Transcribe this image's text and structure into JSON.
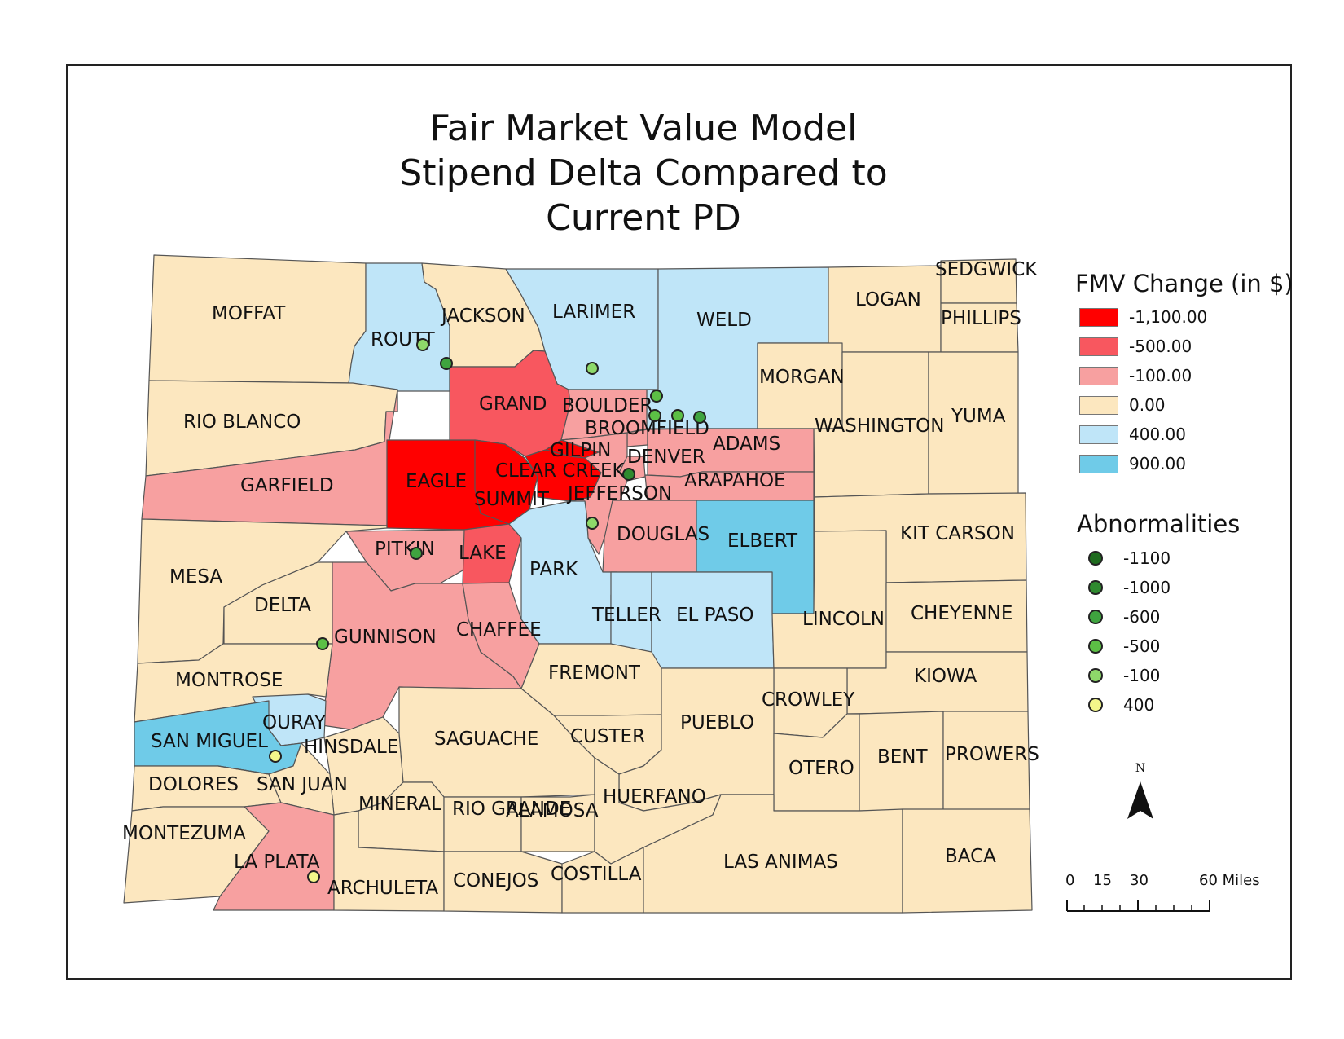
{
  "title": {
    "line1": "Fair Market Value Model",
    "line2": "Stipend Delta Compared to",
    "line3": "Current PD"
  },
  "colors": {
    "-1100": "#ff0000",
    "-500": "#f8575f",
    "-100": "#f7a0a0",
    "0": "#fce7bf",
    "400": "#bfe5f8",
    "900": "#6fcbe8",
    "border": "#555555"
  },
  "legend": {
    "title": "FMV Change (in $)",
    "items": [
      {
        "label": "-1,100.00",
        "color": "#ff0000"
      },
      {
        "label": "-500.00",
        "color": "#f8575f"
      },
      {
        "label": "-100.00",
        "color": "#f7a0a0"
      },
      {
        "label": "0.00",
        "color": "#fce7bf"
      },
      {
        "label": "400.00",
        "color": "#bfe5f8"
      },
      {
        "label": "900.00",
        "color": "#6fcbe8"
      }
    ]
  },
  "abnormalities": {
    "title": "Abnormalities",
    "items": [
      {
        "label": "-1100",
        "color": "#1e6b1e"
      },
      {
        "label": "-1000",
        "color": "#2f8a2f"
      },
      {
        "label": "-600",
        "color": "#3fa43f"
      },
      {
        "label": "-500",
        "color": "#5cbf45"
      },
      {
        "label": "-100",
        "color": "#8ed96a"
      },
      {
        "label": "400",
        "color": "#f3f78a"
      }
    ]
  },
  "north_arrow": {
    "label": "N"
  },
  "scale": {
    "ticks": [
      "0",
      "15",
      "30",
      "60 Miles"
    ]
  },
  "counties": [
    {
      "name": "MOFFAT",
      "class": "0"
    },
    {
      "name": "ROUTT",
      "class": "400"
    },
    {
      "name": "JACKSON",
      "class": "0"
    },
    {
      "name": "LARIMER",
      "class": "400"
    },
    {
      "name": "WELD",
      "class": "400"
    },
    {
      "name": "LOGAN",
      "class": "0"
    },
    {
      "name": "SEDGWICK",
      "class": "0"
    },
    {
      "name": "PHILLIPS",
      "class": "0"
    },
    {
      "name": "RIO BLANCO",
      "class": "0"
    },
    {
      "name": "GRAND",
      "class": "-500"
    },
    {
      "name": "BOULDER",
      "class": "-100"
    },
    {
      "name": "BROOMFIELD",
      "class": "-100"
    },
    {
      "name": "MORGAN",
      "class": "0"
    },
    {
      "name": "WASHINGTON",
      "class": "0"
    },
    {
      "name": "YUMA",
      "class": "0"
    },
    {
      "name": "GARFIELD",
      "class": "-100"
    },
    {
      "name": "EAGLE",
      "class": "-1100"
    },
    {
      "name": "SUMMIT",
      "class": "-1100"
    },
    {
      "name": "GILPIN",
      "class": "-1100"
    },
    {
      "name": "CLEAR CREEK",
      "class": "-1100"
    },
    {
      "name": "DENVER",
      "class": "-100"
    },
    {
      "name": "ADAMS",
      "class": "-100"
    },
    {
      "name": "ARAPAHOE",
      "class": "-100"
    },
    {
      "name": "JEFFERSON",
      "class": "-100"
    },
    {
      "name": "DOUGLAS",
      "class": "-100"
    },
    {
      "name": "ELBERT",
      "class": "900"
    },
    {
      "name": "KIT CARSON",
      "class": "0"
    },
    {
      "name": "MESA",
      "class": "0"
    },
    {
      "name": "PITKIN",
      "class": "-100"
    },
    {
      "name": "LAKE",
      "class": "-500"
    },
    {
      "name": "PARK",
      "class": "400"
    },
    {
      "name": "DELTA",
      "class": "0"
    },
    {
      "name": "TELLER",
      "class": "400"
    },
    {
      "name": "EL PASO",
      "class": "400"
    },
    {
      "name": "LINCOLN",
      "class": "0"
    },
    {
      "name": "CHEYENNE",
      "class": "0"
    },
    {
      "name": "GUNNISON",
      "class": "-100"
    },
    {
      "name": "CHAFFEE",
      "class": "-100"
    },
    {
      "name": "MONTROSE",
      "class": "0"
    },
    {
      "name": "FREMONT",
      "class": "0"
    },
    {
      "name": "KIOWA",
      "class": "0"
    },
    {
      "name": "CROWLEY",
      "class": "0"
    },
    {
      "name": "OURAY",
      "class": "400"
    },
    {
      "name": "SAN MIGUEL",
      "class": "900"
    },
    {
      "name": "HINSDALE",
      "class": "0"
    },
    {
      "name": "SAGUACHE",
      "class": "0"
    },
    {
      "name": "CUSTER",
      "class": "0"
    },
    {
      "name": "PUEBLO",
      "class": "0"
    },
    {
      "name": "OTERO",
      "class": "0"
    },
    {
      "name": "BENT",
      "class": "0"
    },
    {
      "name": "PROWERS",
      "class": "0"
    },
    {
      "name": "DOLORES",
      "class": "0"
    },
    {
      "name": "SAN JUAN",
      "class": "0"
    },
    {
      "name": "MINERAL",
      "class": "0"
    },
    {
      "name": "RIO GRANDE",
      "class": "0"
    },
    {
      "name": "ALAMOSA",
      "class": "0"
    },
    {
      "name": "HUERFANO",
      "class": "0"
    },
    {
      "name": "MONTEZUMA",
      "class": "0"
    },
    {
      "name": "LA PLATA",
      "class": "-100"
    },
    {
      "name": "ARCHULETA",
      "class": "0"
    },
    {
      "name": "CONEJOS",
      "class": "0"
    },
    {
      "name": "COSTILLA",
      "class": "0"
    },
    {
      "name": "LAS ANIMAS",
      "class": "0"
    },
    {
      "name": "BACA",
      "class": "0"
    }
  ]
}
